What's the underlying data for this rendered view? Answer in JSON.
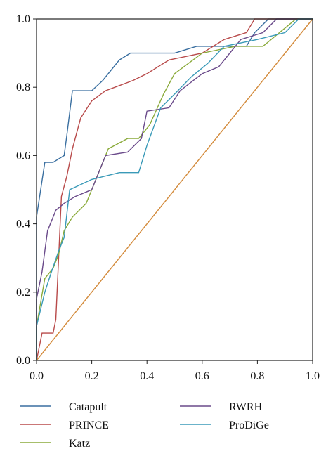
{
  "chart_data": {
    "type": "line",
    "xlim": [
      0,
      1
    ],
    "ylim": [
      0,
      1
    ],
    "x_ticks": [
      "0.0",
      "0.2",
      "0.4",
      "0.6",
      "0.8",
      "1.0"
    ],
    "y_ticks": [
      "0.0",
      "0.2",
      "0.4",
      "0.6",
      "0.8",
      "1.0"
    ],
    "grid": false,
    "legend_position": "bottom",
    "series": [
      {
        "name": "Catapult",
        "color": "#3a6fa0",
        "points": [
          [
            0,
            0
          ],
          [
            0,
            0.42
          ],
          [
            0.03,
            0.58
          ],
          [
            0.06,
            0.58
          ],
          [
            0.1,
            0.6
          ],
          [
            0.11,
            0.66
          ],
          [
            0.13,
            0.79
          ],
          [
            0.2,
            0.79
          ],
          [
            0.24,
            0.82
          ],
          [
            0.3,
            0.88
          ],
          [
            0.34,
            0.9
          ],
          [
            0.5,
            0.9
          ],
          [
            0.58,
            0.92
          ],
          [
            0.76,
            0.92
          ],
          [
            0.79,
            0.96
          ],
          [
            0.84,
            1.0
          ],
          [
            1.0,
            1.0
          ]
        ]
      },
      {
        "name": "PRINCE",
        "color": "#b84a4a",
        "points": [
          [
            0,
            0
          ],
          [
            0.02,
            0.08
          ],
          [
            0.06,
            0.08
          ],
          [
            0.07,
            0.12
          ],
          [
            0.09,
            0.48
          ],
          [
            0.11,
            0.54
          ],
          [
            0.13,
            0.62
          ],
          [
            0.16,
            0.71
          ],
          [
            0.2,
            0.76
          ],
          [
            0.25,
            0.79
          ],
          [
            0.35,
            0.82
          ],
          [
            0.4,
            0.84
          ],
          [
            0.48,
            0.88
          ],
          [
            0.6,
            0.9
          ],
          [
            0.68,
            0.94
          ],
          [
            0.76,
            0.96
          ],
          [
            0.79,
            1.0
          ],
          [
            1.0,
            1.0
          ]
        ]
      },
      {
        "name": "Katz",
        "color": "#8aaa3a",
        "points": [
          [
            0,
            0
          ],
          [
            0,
            0.1
          ],
          [
            0.03,
            0.24
          ],
          [
            0.06,
            0.27
          ],
          [
            0.08,
            0.31
          ],
          [
            0.1,
            0.38
          ],
          [
            0.13,
            0.42
          ],
          [
            0.18,
            0.46
          ],
          [
            0.2,
            0.5
          ],
          [
            0.26,
            0.62
          ],
          [
            0.33,
            0.65
          ],
          [
            0.37,
            0.65
          ],
          [
            0.41,
            0.69
          ],
          [
            0.46,
            0.78
          ],
          [
            0.5,
            0.84
          ],
          [
            0.6,
            0.9
          ],
          [
            0.72,
            0.92
          ],
          [
            0.82,
            0.92
          ],
          [
            0.88,
            0.96
          ],
          [
            0.94,
            1.0
          ],
          [
            1.0,
            1.0
          ]
        ]
      },
      {
        "name": "RWRH",
        "color": "#6a4a8a",
        "points": [
          [
            0,
            0
          ],
          [
            0,
            0.18
          ],
          [
            0.02,
            0.26
          ],
          [
            0.04,
            0.38
          ],
          [
            0.07,
            0.44
          ],
          [
            0.1,
            0.46
          ],
          [
            0.14,
            0.48
          ],
          [
            0.2,
            0.5
          ],
          [
            0.25,
            0.6
          ],
          [
            0.33,
            0.61
          ],
          [
            0.38,
            0.65
          ],
          [
            0.4,
            0.73
          ],
          [
            0.48,
            0.74
          ],
          [
            0.52,
            0.79
          ],
          [
            0.6,
            0.84
          ],
          [
            0.66,
            0.86
          ],
          [
            0.74,
            0.94
          ],
          [
            0.82,
            0.96
          ],
          [
            0.87,
            1.0
          ],
          [
            1.0,
            1.0
          ]
        ]
      },
      {
        "name": "ProDiGe",
        "color": "#3a9ab8",
        "points": [
          [
            0,
            0
          ],
          [
            0,
            0.1
          ],
          [
            0.03,
            0.2
          ],
          [
            0.05,
            0.25
          ],
          [
            0.08,
            0.32
          ],
          [
            0.1,
            0.36
          ],
          [
            0.12,
            0.5
          ],
          [
            0.2,
            0.53
          ],
          [
            0.3,
            0.55
          ],
          [
            0.37,
            0.55
          ],
          [
            0.4,
            0.63
          ],
          [
            0.45,
            0.74
          ],
          [
            0.5,
            0.78
          ],
          [
            0.56,
            0.83
          ],
          [
            0.62,
            0.87
          ],
          [
            0.68,
            0.92
          ],
          [
            0.8,
            0.94
          ],
          [
            0.9,
            0.96
          ],
          [
            0.95,
            1.0
          ],
          [
            1.0,
            1.0
          ]
        ]
      },
      {
        "color": "#d38a3a",
        "points": [
          [
            0,
            0
          ],
          [
            1,
            1
          ]
        ]
      }
    ],
    "legend": [
      {
        "label": "Catapult",
        "color": "#3a6fa0"
      },
      {
        "label": "RWRH",
        "color": "#6a4a8a"
      },
      {
        "label": "PRINCE",
        "color": "#b84a4a"
      },
      {
        "label": "ProDiGe",
        "color": "#3a9ab8"
      },
      {
        "label": "Katz",
        "color": "#8aaa3a"
      }
    ]
  }
}
